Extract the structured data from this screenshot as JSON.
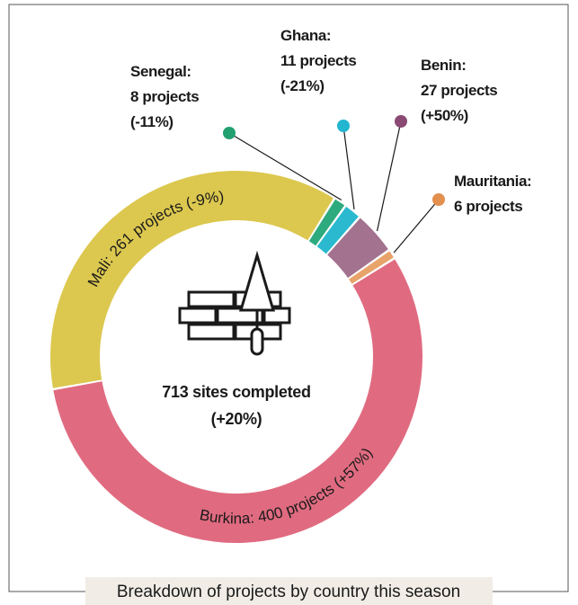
{
  "chart_data": {
    "type": "donut",
    "categories": [
      "Mali",
      "Senegal",
      "Ghana",
      "Benin",
      "Mauritania",
      "Burkina"
    ],
    "values": [
      261,
      8,
      11,
      27,
      6,
      400
    ],
    "colors": [
      "#dcc84f",
      "#2daa7e",
      "#2ab9cf",
      "#a3728f",
      "#e8a36a",
      "#e06b80"
    ],
    "dot_colors": [
      "#dcc84f",
      "#22a06f",
      "#22b6d0",
      "#8a4a73",
      "#e38f4e",
      "#e06b80"
    ],
    "labels": [
      [
        "Mali: 261 projects (-9%)"
      ],
      [
        "Senegal:",
        "8 projects",
        "(-11%)"
      ],
      [
        "Ghana:",
        "11 projects",
        "(-21%)"
      ],
      [
        "Benin:",
        "27 projects",
        "(+50%)"
      ],
      [
        "Mauritania:",
        "6 projects"
      ],
      [
        "Burkina: 400 projects (+57%)"
      ]
    ],
    "center_text": [
      "713 sites completed",
      "(+20%)"
    ],
    "caption": "Breakdown of projects by country this season"
  }
}
